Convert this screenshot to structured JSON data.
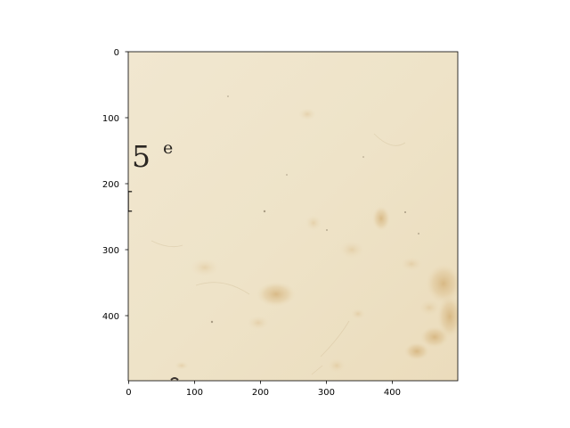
{
  "plot": {
    "x_ticks": [
      "0",
      "100",
      "200",
      "300",
      "400"
    ],
    "y_ticks": [
      "0",
      "100",
      "200",
      "300",
      "400"
    ],
    "xlim": [
      0,
      500
    ],
    "ylim": [
      500,
      0
    ],
    "y_axis_inverted": true,
    "paper_color": "#efe5cc"
  },
  "image": {
    "number": "5",
    "superscript": "e",
    "bracket": "["
  }
}
